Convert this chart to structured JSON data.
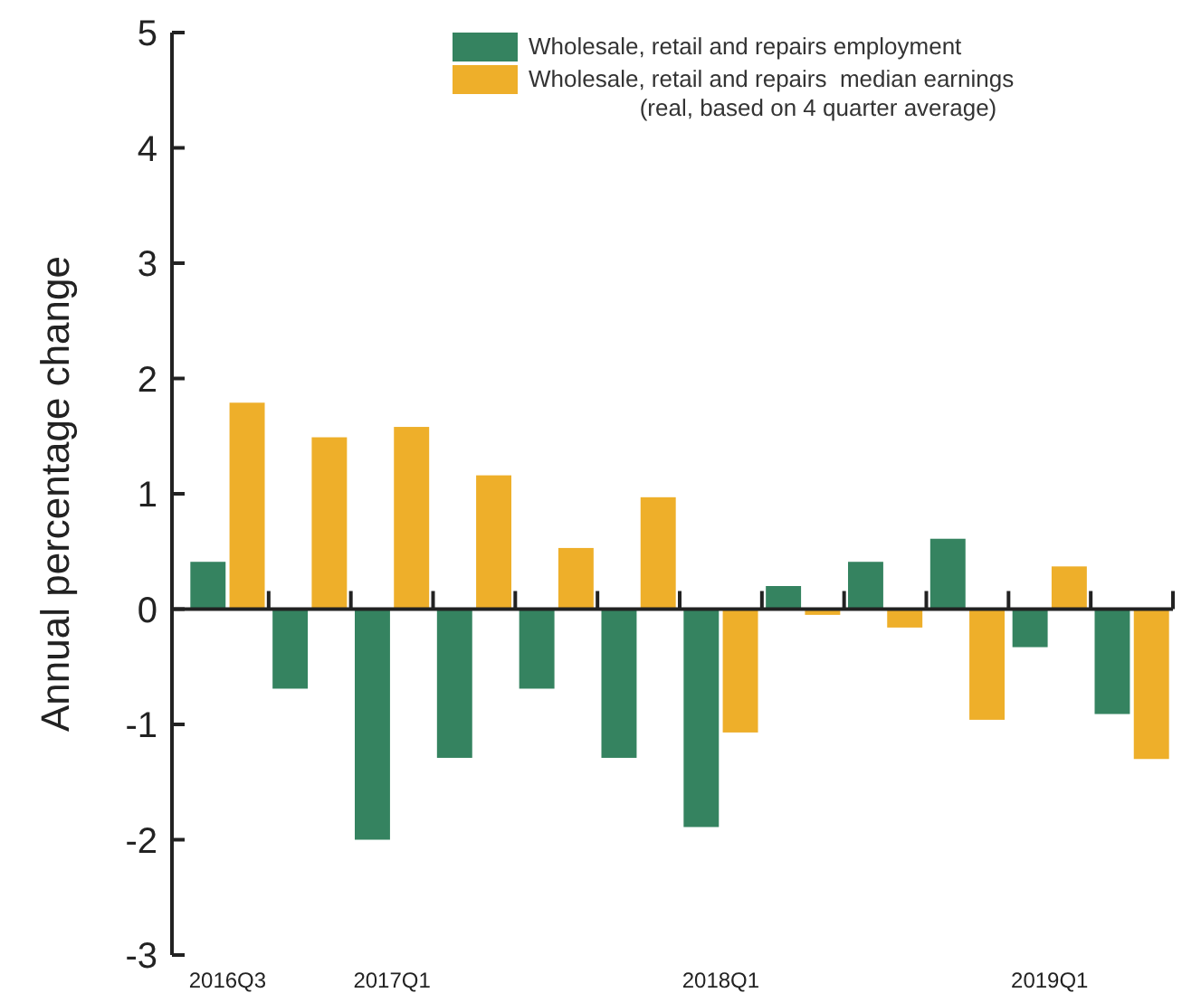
{
  "chart_data": {
    "type": "bar",
    "ylabel": "Annual percentage change",
    "categories": [
      "2016Q3",
      null,
      "2017Q1",
      null,
      null,
      null,
      "2018Q1",
      null,
      null,
      null,
      "2019Q1",
      null
    ],
    "series": [
      {
        "name": "Wholesale, retail and repairs employment",
        "color": "#358360",
        "values": [
          0.41,
          -0.69,
          -2.0,
          -1.29,
          -0.69,
          -1.29,
          -1.89,
          0.2,
          0.41,
          0.61,
          -0.33,
          -0.91
        ]
      },
      {
        "name": "Wholesale, retail and repairs  median earnings (real, based on 4 quarter average)",
        "color": "#eeaf2a",
        "values": [
          1.79,
          1.49,
          1.58,
          1.16,
          0.53,
          0.97,
          -1.07,
          -0.05,
          -0.16,
          -0.96,
          0.37,
          -1.3
        ]
      }
    ],
    "ylim": [
      -3,
      5
    ],
    "yticks": [
      -3,
      -2,
      -1,
      0,
      1,
      2,
      3,
      4,
      5
    ],
    "legend": "top right"
  }
}
